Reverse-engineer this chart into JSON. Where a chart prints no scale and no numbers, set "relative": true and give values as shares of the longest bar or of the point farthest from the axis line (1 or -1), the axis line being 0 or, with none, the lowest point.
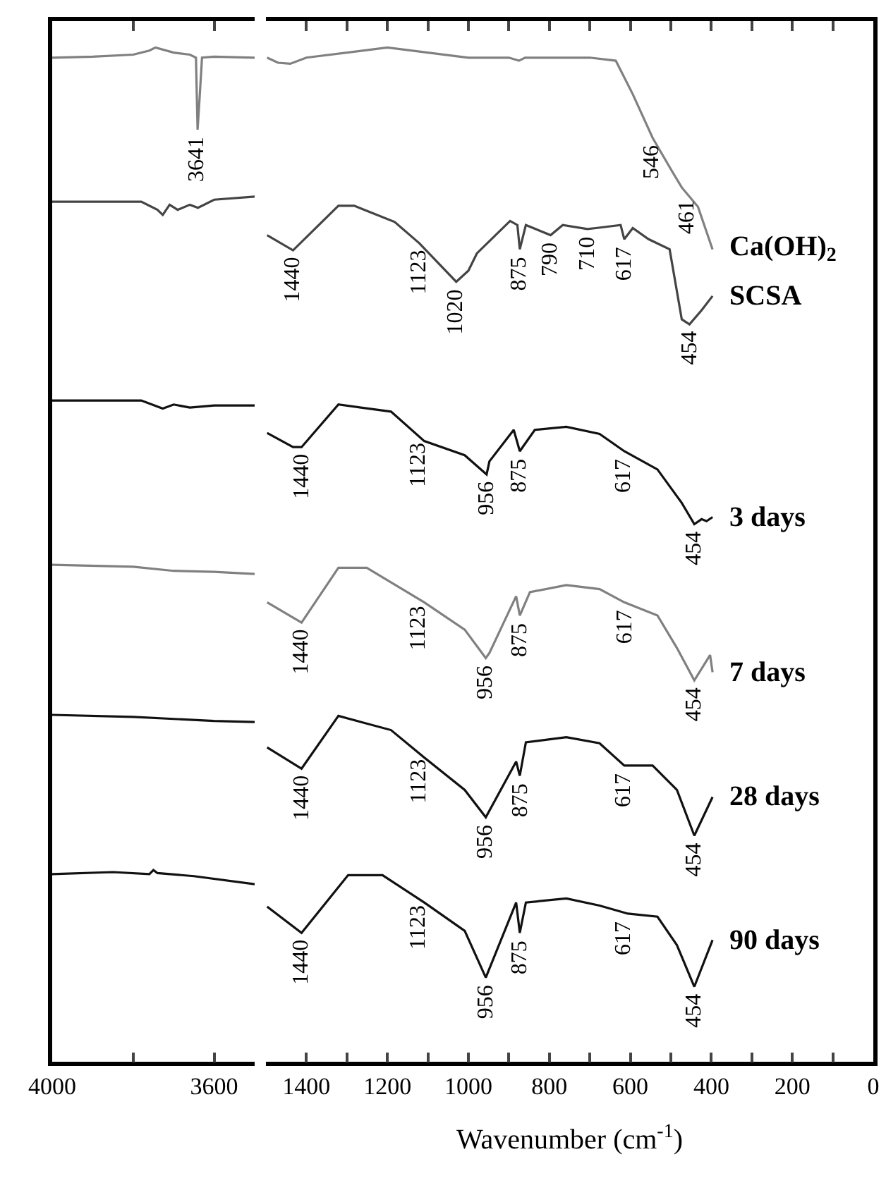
{
  "chart_data": [
    {
      "type": "line",
      "relative": true,
      "xlim": [
        4000,
        3500
      ],
      "xticks": [
        4000,
        {
          "value": 3800,
          "label": null
        },
        3600
      ],
      "legend": false,
      "marker": "none",
      "line_style": "solid",
      "tick_labels": "x",
      "series": [
        {
          "color": "#808080",
          "x": [
            4000,
            3900,
            3800,
            3760,
            3745,
            3700,
            3660,
            3645,
            3641,
            3636,
            3630,
            3600,
            3500
          ],
          "values": [
            0.99,
            0.991,
            0.993,
            0.997,
            1.0,
            0.995,
            0.993,
            0.99,
            0.919,
            0.95,
            0.99,
            0.991,
            0.99
          ]
        },
        {
          "color": "#444444",
          "x": [
            4000,
            3780,
            3740,
            3727,
            3710,
            3690,
            3660,
            3640,
            3600,
            3500
          ],
          "values": [
            0.848,
            0.848,
            0.84,
            0.835,
            0.845,
            0.84,
            0.845,
            0.842,
            0.85,
            0.853
          ]
        },
        {
          "color": "#111111",
          "x": [
            4000,
            3780,
            3727,
            3700,
            3660,
            3600,
            3500
          ],
          "values": [
            0.652,
            0.652,
            0.644,
            0.648,
            0.645,
            0.647,
            0.647
          ]
        },
        {
          "color": "#808080",
          "x": [
            4000,
            3800,
            3700,
            3600,
            3500
          ],
          "values": [
            0.49,
            0.488,
            0.484,
            0.483,
            0.481
          ]
        },
        {
          "color": "#111111",
          "x": [
            4000,
            3800,
            3700,
            3600,
            3500
          ],
          "values": [
            0.342,
            0.34,
            0.338,
            0.336,
            0.335
          ]
        },
        {
          "color": "#111111",
          "x": [
            4000,
            3850,
            3760,
            3750,
            3740,
            3650,
            3500
          ],
          "values": [
            0.185,
            0.187,
            0.185,
            0.189,
            0.186,
            0.183,
            0.175
          ]
        }
      ],
      "annotations": [
        {
          "text": "3641",
          "x": 3641,
          "y": 0.919
        }
      ]
    },
    {
      "type": "line",
      "relative": true,
      "xlim": [
        1500,
        0
      ],
      "xticks": [
        1400,
        {
          "value": 1300,
          "label": null
        },
        1200,
        {
          "value": 1100,
          "label": null
        },
        1000,
        {
          "value": 900,
          "label": null
        },
        800,
        {
          "value": 700,
          "label": null
        },
        600,
        {
          "value": 500,
          "label": null
        },
        400,
        {
          "value": 300,
          "label": null
        },
        200,
        {
          "value": 100,
          "label": null
        },
        0
      ],
      "legend": false,
      "marker": "none",
      "line_style": "solid",
      "tick_labels": "x",
      "xlabel": "Wavenumber (cm$^{-1}$)",
      "series": [
        {
          "name": "Ca(OH)$_{2}$",
          "color": "#808080",
          "x": [
            1497,
            1470,
            1440,
            1400,
            1200,
            1000,
            900,
            875,
            860,
            700,
            636,
            594,
            545,
            500,
            473,
            433,
            397
          ],
          "values": [
            0.99,
            0.985,
            0.984,
            0.99,
            1.0,
            0.99,
            0.99,
            0.987,
            0.99,
            0.99,
            0.987,
            0.954,
            0.911,
            0.88,
            0.862,
            0.843,
            0.801
          ]
        },
        {
          "name": "SCSA",
          "color": "#444444",
          "x": [
            1497,
            1433,
            1321,
            1282,
            1182,
            1121,
            1030,
            1000,
            979,
            897,
            879,
            873,
            858,
            797,
            767,
            706,
            685,
            624,
            615,
            594,
            555,
            503,
            473,
            454,
            424,
            397
          ],
          "values": [
            0.815,
            0.8,
            0.844,
            0.844,
            0.828,
            0.807,
            0.769,
            0.78,
            0.797,
            0.829,
            0.825,
            0.801,
            0.825,
            0.815,
            0.825,
            0.821,
            0.822,
            0.825,
            0.811,
            0.822,
            0.811,
            0.801,
            0.732,
            0.727,
            0.741,
            0.755
          ]
        },
        {
          "name": "3 days",
          "color": "#111111",
          "x": [
            1497,
            1433,
            1412,
            1321,
            1191,
            1109,
            1009,
            955,
            948,
            888,
            873,
            836,
            758,
            676,
            615,
            533,
            473,
            442,
            424,
            412,
            397
          ],
          "values": [
            0.62,
            0.606,
            0.606,
            0.648,
            0.641,
            0.612,
            0.598,
            0.579,
            0.592,
            0.623,
            0.602,
            0.623,
            0.626,
            0.619,
            0.602,
            0.584,
            0.551,
            0.53,
            0.535,
            0.533,
            0.537
          ]
        },
        {
          "name": "7 days",
          "color": "#808080",
          "x": [
            1497,
            1412,
            1321,
            1251,
            1109,
            1009,
            957,
            948,
            882,
            873,
            848,
            758,
            676,
            615,
            533,
            485,
            442,
            403,
            397
          ],
          "values": [
            0.453,
            0.433,
            0.487,
            0.487,
            0.453,
            0.426,
            0.398,
            0.403,
            0.459,
            0.44,
            0.463,
            0.47,
            0.466,
            0.453,
            0.44,
            0.408,
            0.376,
            0.401,
            0.384
          ]
        },
        {
          "name": "28 days",
          "color": "#111111",
          "x": [
            1497,
            1412,
            1321,
            1191,
            1109,
            1009,
            957,
            882,
            873,
            858,
            758,
            676,
            615,
            545,
            485,
            442,
            397
          ],
          "values": [
            0.31,
            0.289,
            0.341,
            0.327,
            0.3,
            0.268,
            0.241,
            0.296,
            0.282,
            0.315,
            0.32,
            0.314,
            0.292,
            0.292,
            0.268,
            0.223,
            0.261
          ]
        },
        {
          "name": "90 days",
          "color": "#111111",
          "x": [
            1497,
            1412,
            1297,
            1212,
            1109,
            1009,
            957,
            882,
            873,
            858,
            758,
            676,
            606,
            533,
            485,
            442,
            397
          ],
          "values": [
            0.153,
            0.127,
            0.184,
            0.184,
            0.157,
            0.129,
            0.083,
            0.157,
            0.127,
            0.157,
            0.161,
            0.154,
            0.146,
            0.143,
            0.115,
            0.074,
            0.12
          ]
        }
      ],
      "annotations": [
        {
          "text": "546",
          "x": 546,
          "y": 0.911
        },
        {
          "text": "461",
          "x": 461,
          "y": 0.856
        },
        {
          "text": "1440",
          "x": 1433,
          "y": 0.8
        },
        {
          "text": "1123",
          "x": 1123,
          "y": 0.807
        },
        {
          "text": "1020",
          "x": 1030,
          "y": 0.769
        },
        {
          "text": "875",
          "x": 873,
          "y": 0.801
        },
        {
          "text": "790",
          "x": 797,
          "y": 0.815
        },
        {
          "text": "710",
          "x": 706,
          "y": 0.821
        },
        {
          "text": "617",
          "x": 615,
          "y": 0.811
        },
        {
          "text": "454",
          "x": 454,
          "y": 0.727
        },
        {
          "text": "1440",
          "x": 1412,
          "y": 0.606
        },
        {
          "text": "1123",
          "x": 1123,
          "y": 0.617
        },
        {
          "text": "956",
          "x": 955,
          "y": 0.579
        },
        {
          "text": "875",
          "x": 873,
          "y": 0.602
        },
        {
          "text": "617",
          "x": 615,
          "y": 0.602
        },
        {
          "text": "454",
          "x": 442,
          "y": 0.53
        },
        {
          "text": "1440",
          "x": 1412,
          "y": 0.433
        },
        {
          "text": "1123",
          "x": 1123,
          "y": 0.456
        },
        {
          "text": "956",
          "x": 957,
          "y": 0.398
        },
        {
          "text": "875",
          "x": 873,
          "y": 0.44
        },
        {
          "text": "617",
          "x": 615,
          "y": 0.453
        },
        {
          "text": "454",
          "x": 442,
          "y": 0.376
        },
        {
          "text": "1440",
          "x": 1412,
          "y": 0.289
        },
        {
          "text": "1123",
          "x": 1123,
          "y": 0.305
        },
        {
          "text": "956",
          "x": 957,
          "y": 0.241
        },
        {
          "text": "875",
          "x": 873,
          "y": 0.282
        },
        {
          "text": "617",
          "x": 615,
          "y": 0.292
        },
        {
          "text": "454",
          "x": 442,
          "y": 0.223
        },
        {
          "text": "1440",
          "x": 1412,
          "y": 0.127
        },
        {
          "text": "1123",
          "x": 1123,
          "y": 0.161
        },
        {
          "text": "956",
          "x": 957,
          "y": 0.083
        },
        {
          "text": "875",
          "x": 873,
          "y": 0.127
        },
        {
          "text": "617",
          "x": 615,
          "y": 0.146
        },
        {
          "text": "454",
          "x": 442,
          "y": 0.074
        }
      ]
    }
  ]
}
